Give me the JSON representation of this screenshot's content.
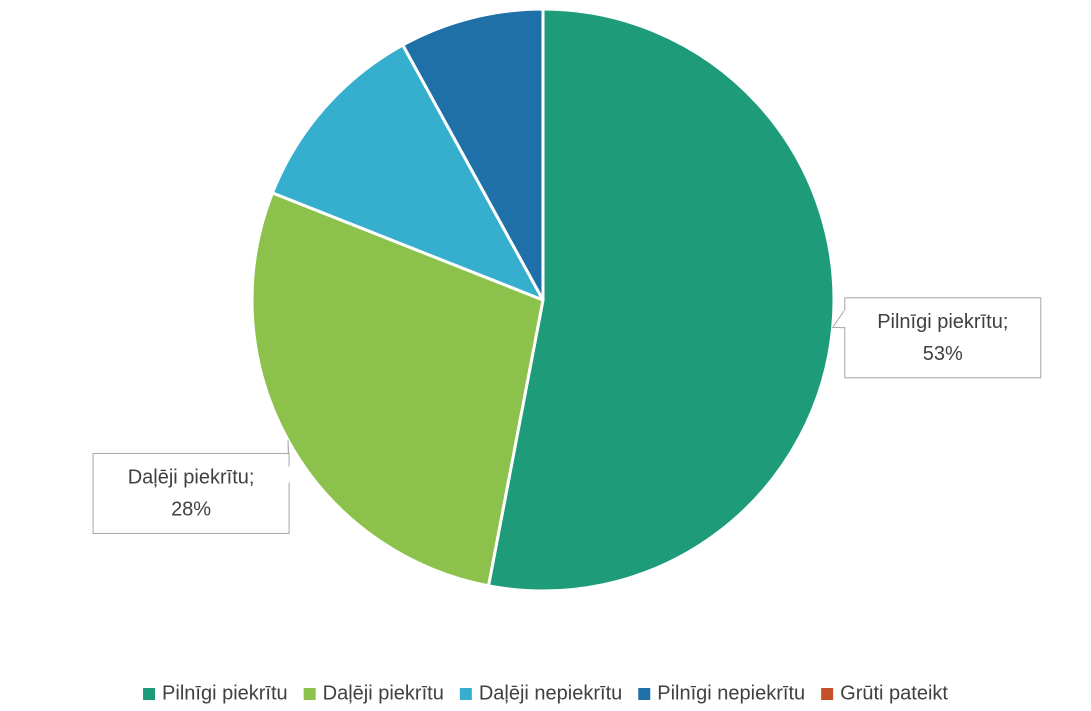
{
  "chart_data": {
    "type": "pie",
    "categories": [
      "Pilnīgi piekrītu",
      "Daļēji piekrītu",
      "Daļēji nepiekrītu",
      "Pilnīgi nepiekrītu",
      "Grūti pateikt"
    ],
    "values": [
      53,
      28,
      11,
      8,
      0
    ],
    "value_labels": [
      "53%",
      "28%",
      null,
      null,
      null
    ],
    "label_separator": ";",
    "colors": [
      "#1e9c7a",
      "#8cc14b",
      "#36afce",
      "#1f6fa8",
      "#c4502a"
    ],
    "legend": "bottom"
  }
}
